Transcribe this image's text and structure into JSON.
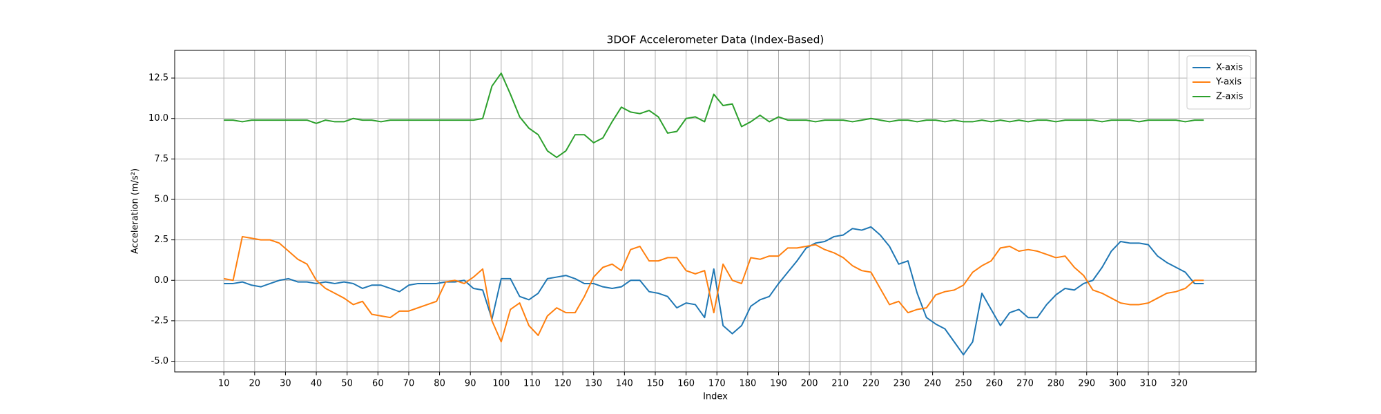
{
  "chart_data": {
    "type": "line",
    "title": "3DOF Accelerometer Data (Index-Based)",
    "x_label": "Index",
    "y_label": "Acceleration (m/s²)",
    "x": [
      10,
      13,
      16,
      19,
      22,
      25,
      28,
      31,
      34,
      37,
      40,
      43,
      46,
      49,
      52,
      55,
      58,
      61,
      64,
      67,
      70,
      73,
      76,
      79,
      82,
      85,
      88,
      91,
      94,
      97,
      100,
      103,
      106,
      109,
      112,
      115,
      118,
      121,
      124,
      127,
      130,
      133,
      136,
      139,
      142,
      145,
      148,
      151,
      154,
      157,
      160,
      163,
      166,
      169,
      172,
      175,
      178,
      181,
      184,
      187,
      190,
      193,
      196,
      199,
      202,
      205,
      208,
      211,
      214,
      217,
      220,
      223,
      226,
      229,
      232,
      235,
      238,
      241,
      244,
      247,
      250,
      253,
      256,
      259,
      262,
      265,
      268,
      271,
      274,
      277,
      280,
      283,
      286,
      289,
      292,
      295,
      298,
      301,
      304,
      307,
      310,
      313,
      316,
      319,
      322,
      325,
      328
    ],
    "series": [
      {
        "name": "X-axis",
        "color": "#1f77b4",
        "values": [
          -0.2,
          -0.2,
          -0.1,
          -0.3,
          -0.4,
          -0.2,
          0.0,
          0.1,
          -0.1,
          -0.1,
          -0.2,
          -0.1,
          -0.2,
          -0.1,
          -0.2,
          -0.5,
          -0.3,
          -0.3,
          -0.5,
          -0.7,
          -0.3,
          -0.2,
          -0.2,
          -0.2,
          -0.1,
          -0.1,
          0.0,
          -0.5,
          -0.6,
          -2.4,
          0.1,
          0.1,
          -1.0,
          -1.2,
          -0.8,
          0.1,
          0.2,
          0.3,
          0.1,
          -0.2,
          -0.2,
          -0.4,
          -0.5,
          -0.4,
          0.0,
          0.0,
          -0.7,
          -0.8,
          -1.0,
          -1.7,
          -1.4,
          -1.5,
          -2.3,
          0.7,
          -2.8,
          -3.3,
          -2.8,
          -1.6,
          -1.2,
          -1.0,
          -0.2,
          0.5,
          1.2,
          2.0,
          2.3,
          2.4,
          2.7,
          2.8,
          3.2,
          3.1,
          3.3,
          2.8,
          2.1,
          1.0,
          1.2,
          -0.8,
          -2.3,
          -2.7,
          -3.0,
          -3.8,
          -4.6,
          -3.8,
          -0.8,
          -1.8,
          -2.8,
          -2.0,
          -1.8,
          -2.3,
          -2.3,
          -1.5,
          -0.9,
          -0.5,
          -0.6,
          -0.2,
          0.0,
          0.8,
          1.8,
          2.4,
          2.3,
          2.3,
          2.2,
          1.5,
          1.1,
          0.8,
          0.5,
          -0.2,
          -0.2
        ]
      },
      {
        "name": "Y-axis",
        "color": "#ff7f0e",
        "values": [
          0.1,
          0.0,
          2.7,
          2.6,
          2.5,
          2.5,
          2.3,
          1.8,
          1.3,
          1.0,
          0.0,
          -0.5,
          -0.8,
          -1.1,
          -1.5,
          -1.3,
          -2.1,
          -2.2,
          -2.3,
          -1.9,
          -1.9,
          -1.7,
          -1.5,
          -1.3,
          -0.1,
          0.0,
          -0.2,
          0.2,
          0.7,
          -2.5,
          -3.8,
          -1.8,
          -1.4,
          -2.8,
          -3.4,
          -2.2,
          -1.7,
          -2.0,
          -2.0,
          -1.0,
          0.2,
          0.8,
          1.0,
          0.6,
          1.9,
          2.1,
          1.2,
          1.2,
          1.4,
          1.4,
          0.6,
          0.4,
          0.6,
          -2.0,
          1.0,
          0.0,
          -0.2,
          1.4,
          1.3,
          1.5,
          1.5,
          2.0,
          2.0,
          2.1,
          2.2,
          1.9,
          1.7,
          1.4,
          0.9,
          0.6,
          0.5,
          -0.5,
          -1.5,
          -1.3,
          -2.0,
          -1.8,
          -1.7,
          -0.9,
          -0.7,
          -0.6,
          -0.3,
          0.5,
          0.9,
          1.2,
          2.0,
          2.1,
          1.8,
          1.9,
          1.8,
          1.6,
          1.4,
          1.5,
          0.8,
          0.3,
          -0.6,
          -0.8,
          -1.1,
          -1.4,
          -1.5,
          -1.5,
          -1.4,
          -1.1,
          -0.8,
          -0.7,
          -0.5,
          0.0,
          0.0
        ]
      },
      {
        "name": "Z-axis",
        "color": "#2ca02c",
        "values": [
          9.9,
          9.9,
          9.8,
          9.9,
          9.9,
          9.9,
          9.9,
          9.9,
          9.9,
          9.9,
          9.7,
          9.9,
          9.8,
          9.8,
          10.0,
          9.9,
          9.9,
          9.8,
          9.9,
          9.9,
          9.9,
          9.9,
          9.9,
          9.9,
          9.9,
          9.9,
          9.9,
          9.9,
          10.0,
          12.0,
          12.8,
          11.5,
          10.1,
          9.4,
          9.0,
          8.0,
          7.6,
          8.0,
          9.0,
          9.0,
          8.5,
          8.8,
          9.8,
          10.7,
          10.4,
          10.3,
          10.5,
          10.1,
          9.1,
          9.2,
          10.0,
          10.1,
          9.8,
          11.5,
          10.8,
          10.9,
          9.5,
          9.8,
          10.2,
          9.8,
          10.1,
          9.9,
          9.9,
          9.9,
          9.8,
          9.9,
          9.9,
          9.9,
          9.8,
          9.9,
          10.0,
          9.9,
          9.8,
          9.9,
          9.9,
          9.8,
          9.9,
          9.9,
          9.8,
          9.9,
          9.8,
          9.8,
          9.9,
          9.8,
          9.9,
          9.8,
          9.9,
          9.8,
          9.9,
          9.9,
          9.8,
          9.9,
          9.9,
          9.9,
          9.9,
          9.8,
          9.9,
          9.9,
          9.9,
          9.8,
          9.9,
          9.9,
          9.9,
          9.9,
          9.8,
          9.9,
          9.9
        ]
      }
    ],
    "xlim": [
      -5.95,
      344.95
    ],
    "xticks": [
      10,
      20,
      30,
      40,
      50,
      60,
      70,
      80,
      90,
      100,
      110,
      120,
      130,
      140,
      150,
      160,
      170,
      180,
      190,
      200,
      210,
      220,
      230,
      240,
      250,
      260,
      270,
      280,
      290,
      300,
      310,
      320
    ],
    "ylim": [
      -5.66,
      14.21
    ],
    "yticks": [
      {
        "value": -5,
        "label": "-5.0"
      },
      -2.5,
      {
        "value": 0,
        "label": "0.0"
      },
      2.5,
      {
        "value": 5,
        "label": "5.0"
      },
      7.5,
      {
        "value": 10,
        "label": "10.0"
      },
      12.5
    ],
    "grid": true,
    "legend": "upper right"
  }
}
